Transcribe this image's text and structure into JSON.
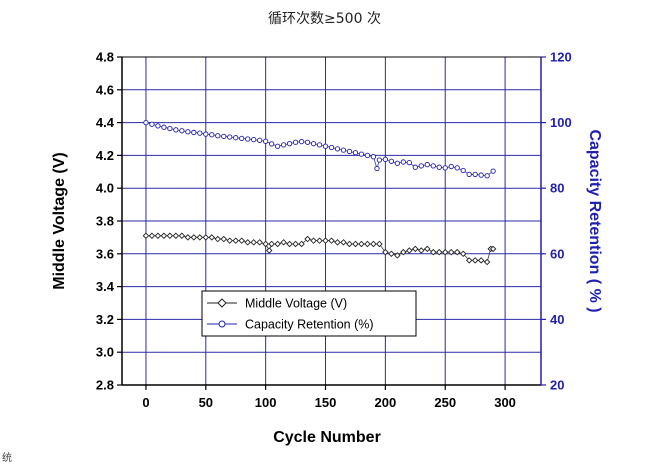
{
  "page": {
    "title": "循环次数≥500 次",
    "footnote": "统"
  },
  "chart_data": {
    "type": "scatter",
    "xlabel": "Cycle Number",
    "ylabel_left": "Middle Voltage (V)",
    "ylabel_right": "Capacity Retention ( % )",
    "xlim": [
      -20,
      330
    ],
    "ylim_left": [
      2.8,
      4.8
    ],
    "ylim_right": [
      20,
      120
    ],
    "x_ticks": [
      "0",
      "50",
      "100",
      "150",
      "200",
      "250",
      "300"
    ],
    "y_left_ticks": [
      "2.8",
      "3.0",
      "3.2",
      "3.4",
      "3.6",
      "3.8",
      "4.0",
      "4.2",
      "4.4",
      "4.6",
      "4.8"
    ],
    "y_right_ticks": [
      "20",
      "40",
      "60",
      "80",
      "100",
      "120"
    ],
    "grid": true,
    "legend_position": "lower-left",
    "colors": {
      "grid": "#2a2aa8",
      "left_axis": "#000000",
      "right_axis": "#1f1fb0",
      "series_voltage": "#222222",
      "series_capacity": "#1f1fb0"
    },
    "series": [
      {
        "name": "Middle Voltage (V)",
        "axis": "left",
        "marker": "diamond",
        "x": [
          0,
          5,
          10,
          15,
          20,
          25,
          30,
          35,
          40,
          45,
          50,
          55,
          60,
          65,
          70,
          75,
          80,
          85,
          90,
          95,
          100,
          103,
          105,
          110,
          115,
          120,
          125,
          130,
          135,
          140,
          145,
          150,
          155,
          160,
          165,
          170,
          175,
          180,
          185,
          190,
          195,
          200,
          205,
          210,
          215,
          220,
          225,
          230,
          235,
          240,
          245,
          250,
          255,
          260,
          265,
          270,
          275,
          280,
          285,
          288,
          290
        ],
        "y": [
          3.71,
          3.71,
          3.71,
          3.71,
          3.71,
          3.71,
          3.71,
          3.7,
          3.7,
          3.7,
          3.7,
          3.7,
          3.69,
          3.69,
          3.68,
          3.68,
          3.68,
          3.67,
          3.67,
          3.67,
          3.66,
          3.62,
          3.66,
          3.66,
          3.67,
          3.66,
          3.66,
          3.66,
          3.69,
          3.68,
          3.68,
          3.68,
          3.68,
          3.67,
          3.67,
          3.66,
          3.66,
          3.66,
          3.66,
          3.66,
          3.66,
          3.61,
          3.6,
          3.59,
          3.61,
          3.62,
          3.63,
          3.62,
          3.63,
          3.61,
          3.61,
          3.61,
          3.61,
          3.61,
          3.6,
          3.56,
          3.56,
          3.56,
          3.55,
          3.63,
          3.63
        ]
      },
      {
        "name": "Capacity Retention (%)",
        "axis": "right",
        "marker": "circle",
        "x": [
          0,
          5,
          10,
          15,
          20,
          25,
          30,
          35,
          40,
          45,
          50,
          55,
          60,
          65,
          70,
          75,
          80,
          85,
          90,
          95,
          100,
          105,
          110,
          115,
          120,
          125,
          130,
          135,
          140,
          145,
          150,
          155,
          160,
          165,
          170,
          175,
          180,
          185,
          190,
          193,
          195,
          200,
          205,
          210,
          215,
          220,
          225,
          230,
          235,
          240,
          245,
          250,
          255,
          260,
          265,
          270,
          275,
          280,
          285,
          290
        ],
        "y": [
          100,
          99.5,
          99,
          98.6,
          98.2,
          97.8,
          97.5,
          97.2,
          97,
          96.8,
          96.5,
          96.3,
          96,
          95.8,
          95.6,
          95.4,
          95.2,
          95,
          94.8,
          94.6,
          94.3,
          93.5,
          92.8,
          93.2,
          93.6,
          94,
          94.2,
          94,
          93.6,
          93.2,
          92.8,
          92.4,
          92,
          91.6,
          91.2,
          90.8,
          90.4,
          90,
          89.6,
          86,
          88.6,
          88.8,
          88.2,
          87.6,
          88,
          87.8,
          86.4,
          86.8,
          87.2,
          86.8,
          86.4,
          86.2,
          86.6,
          86.2,
          85.4,
          84.2,
          84.2,
          84,
          83.8,
          85.2
        ]
      }
    ]
  }
}
